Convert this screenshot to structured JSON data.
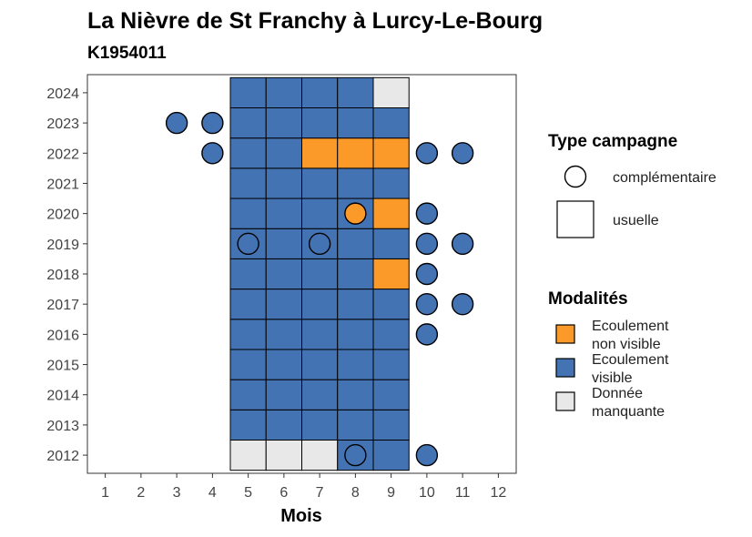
{
  "chart_data": {
    "type": "heatmap",
    "title": "La Nièvre de St Franchy à Lurcy-Le-Bourg",
    "subtitle": "K1954011",
    "xlabel": "Mois",
    "x_ticks": [
      1,
      2,
      3,
      4,
      5,
      6,
      7,
      8,
      9,
      10,
      11,
      12
    ],
    "y_ticks": [
      2012,
      2013,
      2014,
      2015,
      2016,
      2017,
      2018,
      2019,
      2020,
      2021,
      2022,
      2023,
      2024
    ],
    "xlim": [
      0.5,
      12.5
    ],
    "ylim": [
      2011.4,
      2024.6
    ],
    "colors": {
      "Ecoulement non visible": "#fb9a29",
      "Ecoulement visible": "#4473b4",
      "Donnée manquante": "#e8e8e8"
    },
    "usuelle": [
      {
        "year": 2012,
        "cells": {
          "5": "Donnée manquante",
          "6": "Donnée manquante",
          "7": "Donnée manquante",
          "8": "Ecoulement visible",
          "9": "Ecoulement visible"
        }
      },
      {
        "year": 2013,
        "cells": {
          "5": "Ecoulement visible",
          "6": "Ecoulement visible",
          "7": "Ecoulement visible",
          "8": "Ecoulement visible",
          "9": "Ecoulement visible"
        }
      },
      {
        "year": 2014,
        "cells": {
          "5": "Ecoulement visible",
          "6": "Ecoulement visible",
          "7": "Ecoulement visible",
          "8": "Ecoulement visible",
          "9": "Ecoulement visible"
        }
      },
      {
        "year": 2015,
        "cells": {
          "5": "Ecoulement visible",
          "6": "Ecoulement visible",
          "7": "Ecoulement visible",
          "8": "Ecoulement visible",
          "9": "Ecoulement visible"
        }
      },
      {
        "year": 2016,
        "cells": {
          "5": "Ecoulement visible",
          "6": "Ecoulement visible",
          "7": "Ecoulement visible",
          "8": "Ecoulement visible",
          "9": "Ecoulement visible"
        }
      },
      {
        "year": 2017,
        "cells": {
          "5": "Ecoulement visible",
          "6": "Ecoulement visible",
          "7": "Ecoulement visible",
          "8": "Ecoulement visible",
          "9": "Ecoulement visible"
        }
      },
      {
        "year": 2018,
        "cells": {
          "5": "Ecoulement visible",
          "6": "Ecoulement visible",
          "7": "Ecoulement visible",
          "8": "Ecoulement visible",
          "9": "Ecoulement non visible"
        }
      },
      {
        "year": 2019,
        "cells": {
          "5": "Ecoulement visible",
          "6": "Ecoulement visible",
          "7": "Ecoulement visible",
          "8": "Ecoulement visible",
          "9": "Ecoulement visible"
        }
      },
      {
        "year": 2020,
        "cells": {
          "5": "Ecoulement visible",
          "6": "Ecoulement visible",
          "7": "Ecoulement visible",
          "8": "Ecoulement visible",
          "9": "Ecoulement non visible"
        }
      },
      {
        "year": 2021,
        "cells": {
          "5": "Ecoulement visible",
          "6": "Ecoulement visible",
          "7": "Ecoulement visible",
          "8": "Ecoulement visible",
          "9": "Ecoulement visible"
        }
      },
      {
        "year": 2022,
        "cells": {
          "5": "Ecoulement visible",
          "6": "Ecoulement visible",
          "7": "Ecoulement non visible",
          "8": "Ecoulement non visible",
          "9": "Ecoulement non visible"
        }
      },
      {
        "year": 2023,
        "cells": {
          "5": "Ecoulement visible",
          "6": "Ecoulement visible",
          "7": "Ecoulement visible",
          "8": "Ecoulement visible",
          "9": "Ecoulement visible"
        }
      },
      {
        "year": 2024,
        "cells": {
          "5": "Ecoulement visible",
          "6": "Ecoulement visible",
          "7": "Ecoulement visible",
          "8": "Ecoulement visible",
          "9": "Donnée manquante"
        }
      }
    ],
    "complementaire": [
      {
        "year": 2023,
        "month": 3,
        "modalite": "Ecoulement visible"
      },
      {
        "year": 2023,
        "month": 4,
        "modalite": "Ecoulement visible"
      },
      {
        "year": 2022,
        "month": 4,
        "modalite": "Ecoulement visible"
      },
      {
        "year": 2022,
        "month": 10,
        "modalite": "Ecoulement visible"
      },
      {
        "year": 2022,
        "month": 11,
        "modalite": "Ecoulement visible"
      },
      {
        "year": 2020,
        "month": 8,
        "modalite": "Ecoulement non visible"
      },
      {
        "year": 2020,
        "month": 10,
        "modalite": "Ecoulement visible"
      },
      {
        "year": 2019,
        "month": 5,
        "modalite": "Ecoulement visible"
      },
      {
        "year": 2019,
        "month": 7,
        "modalite": "Ecoulement visible"
      },
      {
        "year": 2019,
        "month": 10,
        "modalite": "Ecoulement visible"
      },
      {
        "year": 2019,
        "month": 11,
        "modalite": "Ecoulement visible"
      },
      {
        "year": 2018,
        "month": 10,
        "modalite": "Ecoulement visible"
      },
      {
        "year": 2017,
        "month": 10,
        "modalite": "Ecoulement visible"
      },
      {
        "year": 2017,
        "month": 11,
        "modalite": "Ecoulement visible"
      },
      {
        "year": 2016,
        "month": 10,
        "modalite": "Ecoulement visible"
      },
      {
        "year": 2012,
        "month": 8,
        "modalite": "Ecoulement visible"
      },
      {
        "year": 2012,
        "month": 10,
        "modalite": "Ecoulement visible"
      }
    ],
    "legend_type": {
      "title": "Type campagne",
      "items": [
        "complémentaire",
        "usuelle"
      ]
    },
    "legend_modalites": {
      "title": "Modalités",
      "items": [
        {
          "key": "Ecoulement non visible",
          "lines": [
            "Ecoulement",
            "non visible"
          ]
        },
        {
          "key": "Ecoulement visible",
          "lines": [
            "Ecoulement",
            "visible"
          ]
        },
        {
          "key": "Donnée manquante",
          "lines": [
            "Donnée",
            "manquante"
          ]
        }
      ]
    },
    "legend_placement": "right",
    "grid": false
  }
}
